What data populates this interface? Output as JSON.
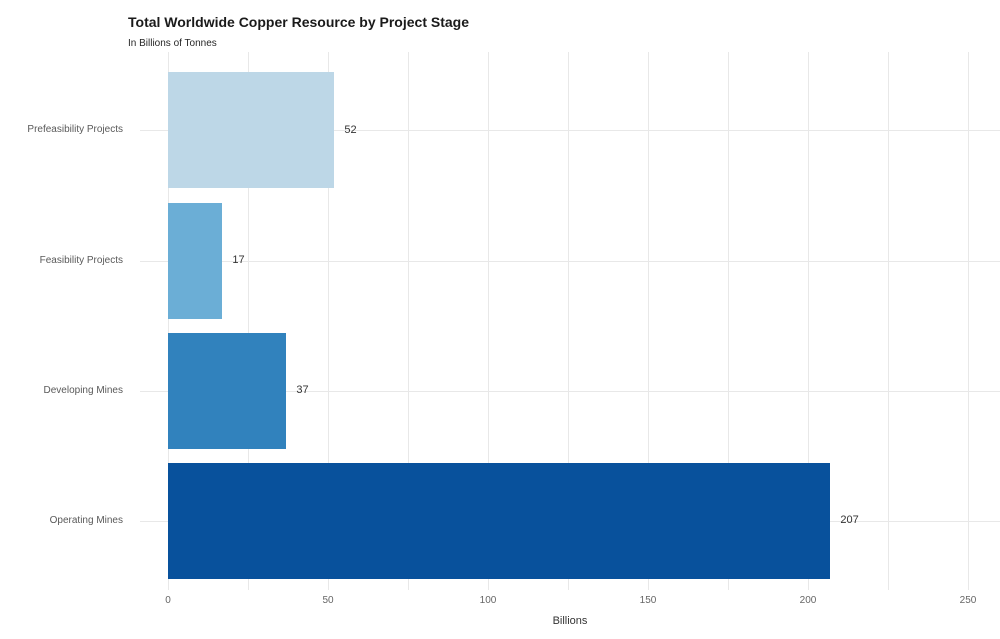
{
  "chart": {
    "title": "Total Worldwide Copper Resource by Project Stage",
    "subtitle": "In Billions of Tonnes",
    "xlabel": "Billions"
  },
  "chart_data": {
    "type": "bar",
    "orientation": "horizontal",
    "title": "Total Worldwide Copper Resource by Project Stage",
    "subtitle": "In Billions of Tonnes",
    "xlabel": "Billions",
    "ylabel": "",
    "categories": [
      "Prefeasibility Projects",
      "Feasibility Projects",
      "Developing Mines",
      "Operating Mines"
    ],
    "values": [
      52,
      17,
      37,
      207
    ],
    "value_labels": [
      "52",
      "17",
      "37",
      "207"
    ],
    "bar_colors": [
      "#bdd7e7",
      "#6baed6",
      "#3182bd",
      "#08519c"
    ],
    "xlim": [
      0,
      250
    ],
    "x_ticks": [
      0,
      50,
      100,
      150,
      200,
      250
    ],
    "x_tick_labels": [
      "0",
      "50",
      "100",
      "150",
      "200",
      "250"
    ],
    "x_grid_minor_step": 25,
    "grid": true,
    "grid_color": "#e8e8e8",
    "legend": false,
    "background": "#ffffff"
  }
}
